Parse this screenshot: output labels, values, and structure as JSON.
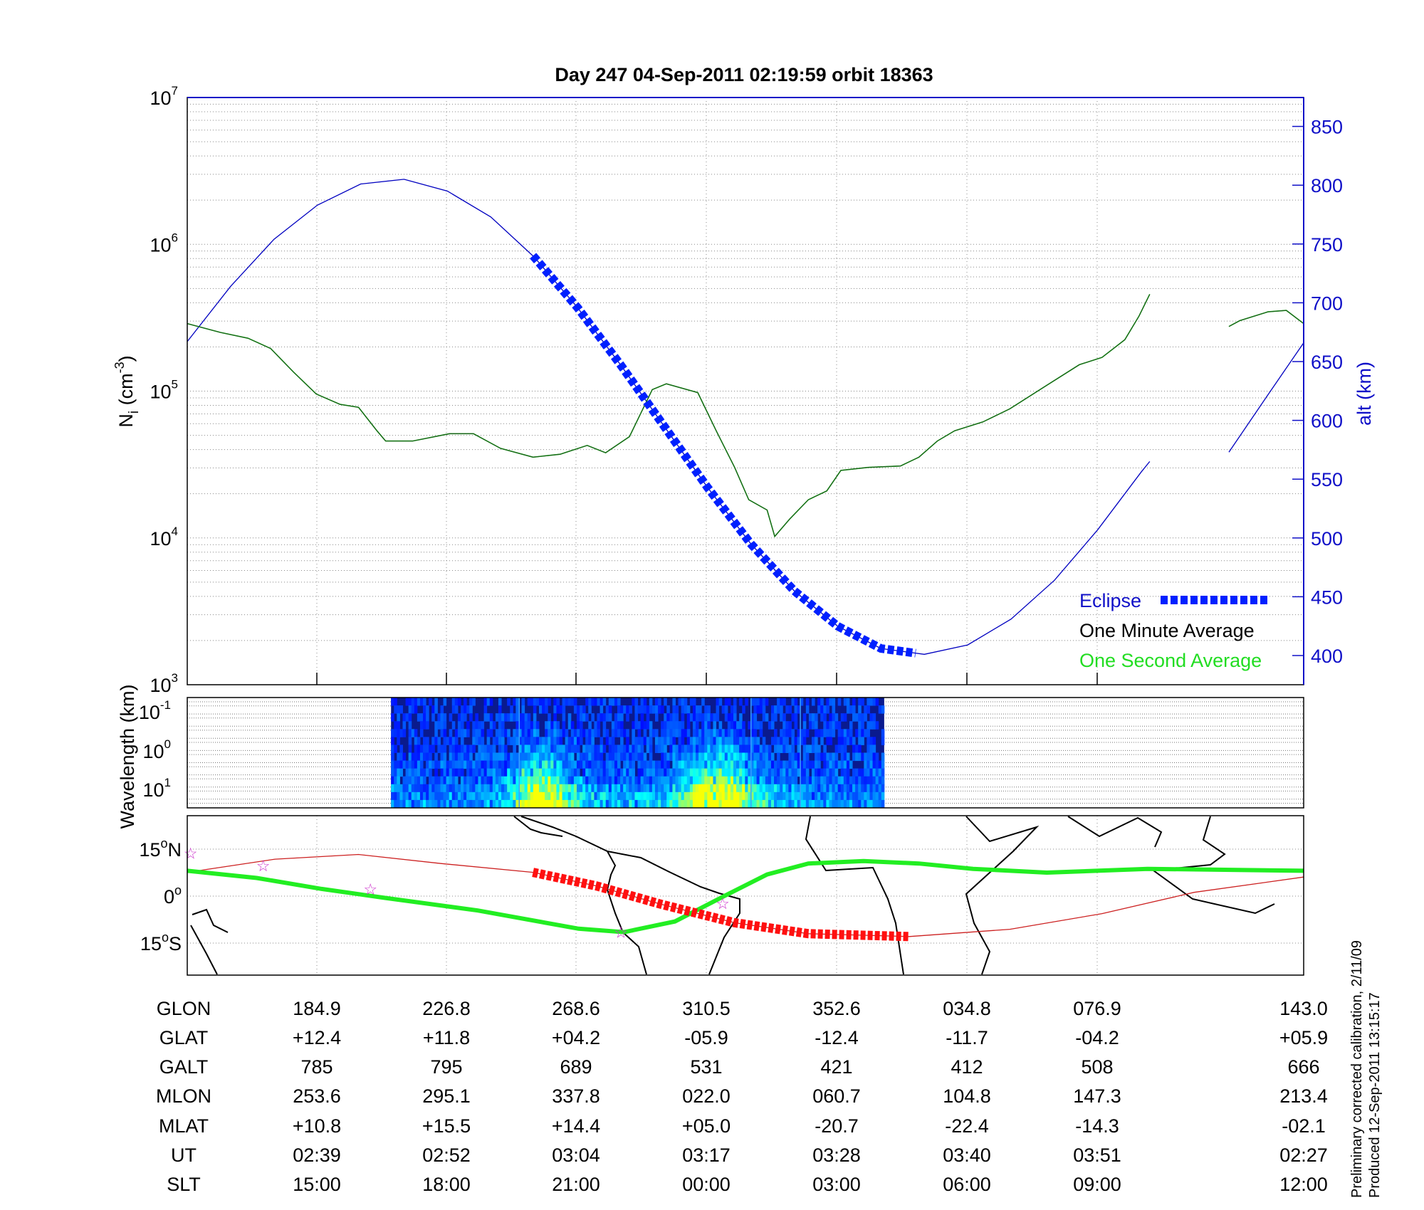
{
  "title": "Day 247  04-Sep-2011 02:19:59   orbit 18363",
  "colors": {
    "altitude": "#0000c0",
    "eclipse": "#0020ff",
    "minute_avg": "#1b5e1b",
    "second_avg": "#22dd22",
    "track": "#cc2020",
    "eclipse_track": "#ff1010",
    "dip_equator": "#22ee22",
    "stars": "#cc33cc",
    "alt_axis": "#1010c8"
  },
  "chart_data": [
    {
      "type": "line",
      "name": "density-altitude",
      "ylabel_left": {
        "main": "N",
        "sub": "i",
        "unit": "(cm",
        "exp": "-3",
        "close": ")"
      },
      "ylabel_right": "alt (km)",
      "xlabel": "",
      "x_units": "minutes from left edge",
      "xlim": [
        0,
        103
      ],
      "ylim_left_log10": [
        3,
        7
      ],
      "yticks_left": [
        {
          "base": "10",
          "exp": "3",
          "v": 3
        },
        {
          "base": "10",
          "exp": "4",
          "v": 4
        },
        {
          "base": "10",
          "exp": "5",
          "v": 5
        },
        {
          "base": "10",
          "exp": "6",
          "v": 6
        },
        {
          "base": "10",
          "exp": "7",
          "v": 7
        }
      ],
      "yticks_right": [
        "400",
        "450",
        "500",
        "550",
        "600",
        "650",
        "700",
        "750",
        "800",
        "850"
      ],
      "legend": {
        "position": "bottom-right",
        "eclipse": "Eclipse",
        "minute": "One Minute Average",
        "second": "One Second Average"
      },
      "series": [
        {
          "name": "One Minute Average (log10 Ni)",
          "segments": [
            [
              [
                0,
                5.46
              ],
              [
                3.05,
                5.4
              ],
              [
                5.6,
                5.36
              ],
              [
                7.7,
                5.29
              ],
              [
                9.8,
                5.13
              ],
              [
                11.9,
                4.98
              ],
              [
                14.1,
                4.91
              ],
              [
                15.8,
                4.89
              ],
              [
                17.5,
                4.73
              ],
              [
                18.3,
                4.66
              ],
              [
                20.8,
                4.66
              ],
              [
                24.2,
                4.71
              ],
              [
                26.4,
                4.71
              ],
              [
                28.9,
                4.61
              ],
              [
                31.9,
                4.55
              ],
              [
                34.4,
                4.57
              ],
              [
                36.9,
                4.63
              ],
              [
                38.6,
                4.58
              ],
              [
                40.8,
                4.69
              ],
              [
                42.9,
                5.01
              ],
              [
                44.2,
                5.05
              ],
              [
                47.1,
                4.99
              ],
              [
                48.8,
                4.73
              ],
              [
                50.5,
                4.48
              ],
              [
                51.8,
                4.26
              ],
              [
                53.5,
                4.19
              ],
              [
                54.2,
                4.01
              ],
              [
                55.6,
                4.13
              ],
              [
                57.3,
                4.26
              ],
              [
                59.0,
                4.32
              ],
              [
                60.3,
                4.46
              ],
              [
                62.8,
                4.48
              ],
              [
                65.8,
                4.49
              ],
              [
                67.5,
                4.55
              ],
              [
                69.2,
                4.66
              ],
              [
                70.8,
                4.73
              ],
              [
                73.4,
                4.79
              ],
              [
                75.9,
                4.88
              ],
              [
                79.3,
                5.04
              ],
              [
                82.3,
                5.18
              ],
              [
                84.4,
                5.23
              ],
              [
                86.5,
                5.35
              ],
              [
                87.8,
                5.51
              ],
              [
                88.8,
                5.66
              ]
            ],
            [
              [
                96.1,
                5.44
              ],
              [
                97.1,
                5.48
              ],
              [
                99.7,
                5.54
              ],
              [
                101.4,
                5.55
              ],
              [
                103,
                5.46
              ]
            ]
          ]
        },
        {
          "name": "Altitude (km)",
          "segments": [
            [
              [
                0,
                667
              ],
              [
                4,
                714
              ],
              [
                8,
                754
              ],
              [
                12,
                783
              ],
              [
                16,
                801
              ],
              [
                20,
                805
              ],
              [
                24,
                795
              ],
              [
                28,
                773
              ],
              [
                32,
                739
              ],
              [
                36,
                696
              ],
              [
                40,
                647
              ],
              [
                44,
                595
              ],
              [
                48,
                543
              ],
              [
                52,
                495
              ],
              [
                56,
                455
              ],
              [
                60,
                425
              ],
              [
                64,
                406
              ],
              [
                68,
                401
              ],
              [
                72,
                409
              ],
              [
                76,
                431
              ],
              [
                80,
                464
              ],
              [
                84,
                507
              ],
              [
                88,
                556
              ],
              [
                88.8,
                565
              ]
            ],
            [
              [
                96.1,
                573
              ],
              [
                99.5,
                619
              ],
              [
                103,
                666
              ]
            ]
          ]
        },
        {
          "name": "Eclipse (altitude km)",
          "segments": [
            [
              [
                31.9,
                740
              ],
              [
                32,
                739
              ],
              [
                36,
                696
              ],
              [
                40,
                647
              ],
              [
                44,
                595
              ],
              [
                48,
                543
              ],
              [
                52,
                495
              ],
              [
                56,
                455
              ],
              [
                60,
                425
              ],
              [
                64,
                406
              ],
              [
                67.2,
                402
              ]
            ]
          ]
        }
      ]
    },
    {
      "type": "heatmap",
      "name": "spectrogram",
      "ylabel": "Wavelength (km)",
      "yticks": [
        {
          "base": "10",
          "exp": "-1"
        },
        {
          "base": "10",
          "exp": "0"
        },
        {
          "base": "10",
          "exp": "1"
        }
      ],
      "data_time_range": [
        18.8,
        64.3
      ]
    },
    {
      "type": "line",
      "name": "ground-track-map",
      "yticks": [
        {
          "num": "15",
          "deg": "o",
          "hem": "N",
          "v": 15
        },
        {
          "num": "0",
          "deg": "o",
          "hem": "",
          "v": 0
        },
        {
          "num": "15",
          "deg": "o",
          "hem": "S",
          "v": -15
        }
      ],
      "series": [
        {
          "name": "orbit track (lat)",
          "points": [
            [
              0,
              7.6
            ],
            [
              8.1,
              11.8
            ],
            [
              15.8,
              13.3
            ],
            [
              23.4,
              10.4
            ],
            [
              31.9,
              7.6
            ],
            [
              37.8,
              3.2
            ],
            [
              43.7,
              -2.6
            ],
            [
              50.5,
              -8.5
            ],
            [
              57.3,
              -12
            ],
            [
              66.6,
              -12.9
            ],
            [
              75.9,
              -10.6
            ],
            [
              84.4,
              -5.6
            ],
            [
              92.9,
              1.2
            ],
            [
              103,
              6.1
            ]
          ]
        },
        {
          "name": "eclipse track (lat)",
          "points": [
            [
              31.9,
              7.6
            ],
            [
              37.8,
              3.2
            ],
            [
              43.7,
              -2.6
            ],
            [
              50.5,
              -8.5
            ],
            [
              57.3,
              -12
            ],
            [
              66.6,
              -12.9
            ]
          ]
        },
        {
          "name": "magnetic dip equator (lat)",
          "points": [
            [
              0,
              8.1
            ],
            [
              6.4,
              5.8
            ],
            [
              12.4,
              2.3
            ],
            [
              18.3,
              -0.6
            ],
            [
              26.8,
              -4.6
            ],
            [
              36.1,
              -10.4
            ],
            [
              40.3,
              -11.5
            ],
            [
              45,
              -8.1
            ],
            [
              49.7,
              0.3
            ],
            [
              53.5,
              6.9
            ],
            [
              57.3,
              10.4
            ],
            [
              62.4,
              11.2
            ],
            [
              67.5,
              10.4
            ],
            [
              72.5,
              8.7
            ],
            [
              79.3,
              7.5
            ],
            [
              88.6,
              8.7
            ],
            [
              103,
              8.1
            ]
          ]
        },
        {
          "name": "markers",
          "points": [
            [
              0.3,
              13.8
            ],
            [
              7,
              9.8
            ],
            [
              16.9,
              2.3
            ],
            [
              40,
              -11.5
            ],
            [
              49.4,
              -2.3
            ]
          ]
        }
      ]
    }
  ],
  "table": {
    "rows": [
      {
        "label": "GLON",
        "values": [
          "184.9",
          "226.8",
          "268.6",
          "310.5",
          "352.6",
          "034.8",
          "076.9",
          "143.0"
        ]
      },
      {
        "label": "GLAT",
        "values": [
          "+12.4",
          "+11.8",
          "+04.2",
          "-05.9",
          "-12.4",
          "-11.7",
          "-04.2",
          "+05.9"
        ]
      },
      {
        "label": "GALT",
        "values": [
          "785",
          "795",
          "689",
          "531",
          "421",
          "412",
          "508",
          "666"
        ]
      },
      {
        "label": "MLON",
        "values": [
          "253.6",
          "295.1",
          "337.8",
          "022.0",
          "060.7",
          "104.8",
          "147.3",
          "213.4"
        ]
      },
      {
        "label": "MLAT",
        "values": [
          "+10.8",
          "+15.5",
          "+14.4",
          "+05.0",
          "-20.7",
          "-22.4",
          "-14.3",
          "-02.1"
        ]
      },
      {
        "label": "UT",
        "values": [
          "02:39",
          "02:52",
          "03:04",
          "03:17",
          "03:28",
          "03:40",
          "03:51",
          "02:27"
        ]
      },
      {
        "label": "SLT",
        "values": [
          "15:00",
          "18:00",
          "21:00",
          "00:00",
          "03:00",
          "06:00",
          "09:00",
          "12:00"
        ]
      }
    ]
  },
  "footer": {
    "line1": "Preliminary corrected calibration, 2/11/09",
    "line2": "Produced 12-Sep-2011 13:15:17"
  }
}
